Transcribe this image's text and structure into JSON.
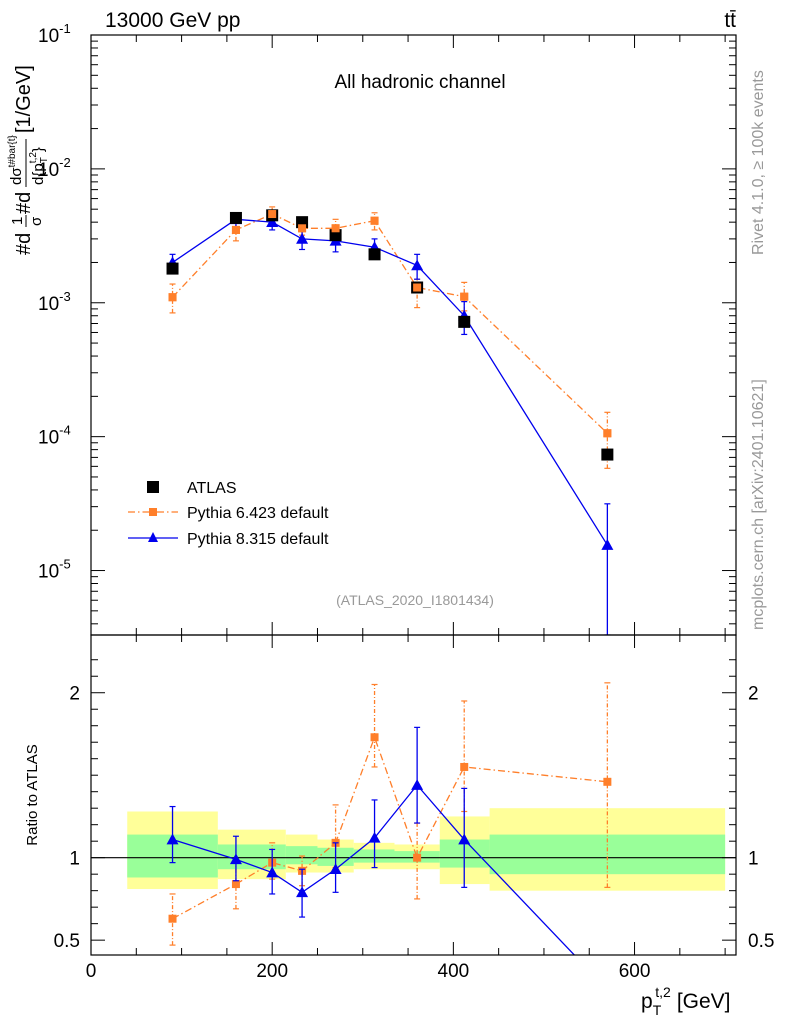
{
  "header": {
    "left_title": "13000 GeV pp",
    "right_title": "tt̄"
  },
  "side_labels": {
    "rivet": "Rivet 4.1.0, ≥ 100k events",
    "mcplots": "mcplots.cern.ch [arXiv:2401.10621]"
  },
  "chart_data": {
    "type": "scatter",
    "title": "All hadronic channel",
    "analysis_tag": "(ATLAS_2020_I1801434)",
    "xlabel": "p_T^{t,2} [GeV]",
    "xlabel_parts": {
      "main": "p",
      "sub": "T",
      "sup": "t,2",
      "unit": "[GeV]"
    },
    "xlim": [
      0,
      712
    ],
    "x_ticks": [
      0,
      200,
      400,
      600
    ],
    "upper": {
      "ylabel": "#d 1/σ #d dσ^{t#bar{t}} / d{p_T^{t,2}} [1/GeV]",
      "ylabel_parts": {
        "left": "#d",
        "frac1_num": "1",
        "frac1_den": "σ",
        "middle": "#d",
        "frac2_num": "dσ",
        "frac2_num_sup": "t#bar{t}",
        "frac2_den": "d{p",
        "frac2_den_sub": "T",
        "frac2_den_sup": "t,2",
        "frac2_den_close": "}",
        "unit": "[1/GeV]"
      },
      "yscale": "log",
      "ylim": [
        3.3e-06,
        0.1
      ],
      "y_tick_labels": [
        {
          "base": "10",
          "exp": "-1",
          "value": 0.1
        },
        {
          "base": "10",
          "exp": "-2",
          "value": 0.01
        },
        {
          "base": "10",
          "exp": "-3",
          "value": 0.001
        },
        {
          "base": "10",
          "exp": "-4",
          "value": 0.0001
        },
        {
          "base": "10",
          "exp": "-5",
          "value": 1e-05
        }
      ],
      "legend_position": "bottom-left"
    },
    "lower": {
      "ylabel": "Ratio to ATLAS",
      "ylim": [
        0.41,
        2.35
      ],
      "y_ticks": [
        0.5,
        1,
        2
      ],
      "y_tick_labels": [
        "0.5",
        "1",
        "2"
      ],
      "reference_line": 1,
      "bands": [
        {
          "x0": 40,
          "x1": 140,
          "inner": [
            0.88,
            1.14
          ],
          "outer": [
            0.81,
            1.28
          ]
        },
        {
          "x0": 140,
          "x1": 215,
          "inner": [
            0.93,
            1.08
          ],
          "outer": [
            0.87,
            1.17
          ]
        },
        {
          "x0": 215,
          "x1": 250,
          "inner": [
            0.96,
            1.07
          ],
          "outer": [
            0.91,
            1.14
          ]
        },
        {
          "x0": 250,
          "x1": 290,
          "inner": [
            0.95,
            1.06
          ],
          "outer": [
            0.91,
            1.11
          ]
        },
        {
          "x0": 290,
          "x1": 335,
          "inner": [
            0.97,
            1.05
          ],
          "outer": [
            0.93,
            1.09
          ]
        },
        {
          "x0": 335,
          "x1": 385,
          "inner": [
            0.97,
            1.04
          ],
          "outer": [
            0.93,
            1.08
          ]
        },
        {
          "x0": 385,
          "x1": 440,
          "inner": [
            0.94,
            1.11
          ],
          "outer": [
            0.84,
            1.25
          ]
        },
        {
          "x0": 440,
          "x1": 700,
          "inner": [
            0.9,
            1.14
          ],
          "outer": [
            0.8,
            1.3
          ]
        }
      ],
      "band_colors": {
        "inner": "#99ff99",
        "outer": "#ffff99"
      }
    },
    "series": [
      {
        "name": "ATLAS",
        "color": "#000000",
        "marker": "square",
        "line": "none",
        "x": [
          90,
          160,
          200,
          233,
          270,
          313,
          360,
          412,
          570
        ],
        "y": [
          0.0018,
          0.0043,
          0.0045,
          0.004,
          0.0032,
          0.0023,
          0.0013,
          0.00072,
          7.35e-05
        ],
        "yerr_low": [
          0.0018,
          0.0043,
          0.0045,
          0.004,
          0.0032,
          0.0023,
          0.0013,
          0.00072,
          7.35e-05
        ],
        "yerr_high": [
          0.0018,
          0.0043,
          0.0045,
          0.004,
          0.0032,
          0.0023,
          0.0013,
          0.00072,
          7.35e-05
        ]
      },
      {
        "name": "Pythia 6.423 default",
        "color": "#ff7f2a",
        "marker": "square",
        "line": "dashdot",
        "x": [
          90,
          160,
          200,
          233,
          270,
          313,
          360,
          412,
          570
        ],
        "y": [
          0.0011,
          0.0035,
          0.0046,
          0.0036,
          0.0036,
          0.0041,
          0.0013,
          0.00111,
          0.000106
        ],
        "yerr_low": [
          0.00084,
          0.0029,
          0.0041,
          0.0032,
          0.0031,
          0.0035,
          0.00092,
          0.00087,
          5.8e-05
        ],
        "yerr_high": [
          0.00138,
          0.004,
          0.0052,
          0.004,
          0.0042,
          0.0047,
          0.0015,
          0.00142,
          0.000152
        ],
        "ratio": [
          0.63,
          0.84,
          0.97,
          0.92,
          1.09,
          1.73,
          1.0,
          1.55,
          1.46
        ],
        "ratio_low": [
          0.47,
          0.69,
          0.87,
          0.83,
          0.94,
          1.55,
          0.75,
          1.28,
          0.82
        ],
        "ratio_high": [
          0.78,
          0.98,
          1.09,
          1.01,
          1.32,
          2.05,
          1.21,
          1.95,
          2.06
        ]
      },
      {
        "name": "Pythia 8.315 default",
        "color": "#0000ee",
        "marker": "triangle",
        "line": "solid",
        "x": [
          90,
          160,
          200,
          233,
          270,
          313,
          360,
          412,
          570
        ],
        "y": [
          0.002,
          0.0042,
          0.004,
          0.003,
          0.0029,
          0.0026,
          0.0019,
          0.0008,
          1.55e-05
        ],
        "yerr_low": [
          0.0017,
          0.0037,
          0.0035,
          0.0025,
          0.0024,
          0.0022,
          0.0015,
          0.00058,
          3.3e-06
        ],
        "yerr_high": [
          0.0023,
          0.0047,
          0.0045,
          0.0035,
          0.0034,
          0.003,
          0.0023,
          0.00102,
          3.15e-05
        ],
        "ratio": [
          1.11,
          0.99,
          0.91,
          0.79,
          0.93,
          1.12,
          1.44,
          1.11,
          0.2
        ],
        "ratio_low": [
          0.97,
          0.86,
          0.78,
          0.64,
          0.79,
          0.94,
          1.21,
          0.82,
          0.2
        ],
        "ratio_high": [
          1.31,
          1.13,
          1.05,
          0.93,
          1.09,
          1.35,
          1.79,
          1.42,
          0.2
        ]
      }
    ]
  }
}
